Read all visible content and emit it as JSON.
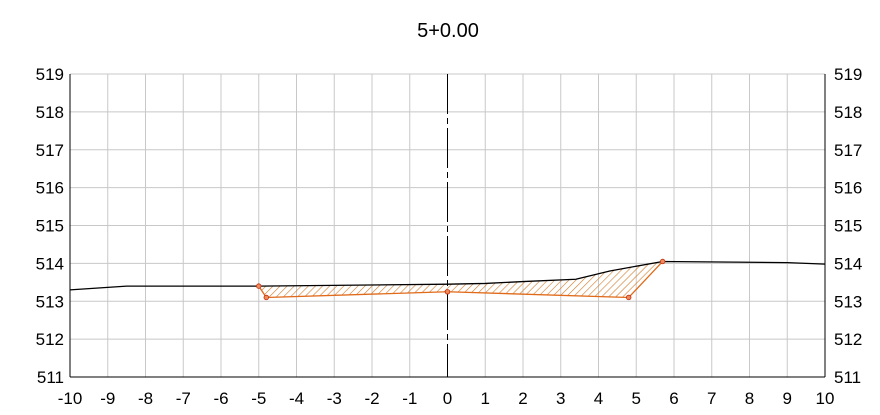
{
  "chart_data": {
    "type": "line",
    "title": "5+0.00",
    "xlabel": "",
    "ylabel": "",
    "xlim": [
      -10,
      10
    ],
    "ylim": [
      511,
      519
    ],
    "x_ticks": [
      "-10",
      "-9",
      "-8",
      "-7",
      "-6",
      "-5",
      "-4",
      "-3",
      "-2",
      "-1",
      "0",
      "1",
      "2",
      "3",
      "4",
      "5",
      "6",
      "7",
      "8",
      "9",
      "10"
    ],
    "x_tick_values": [
      -10,
      -9,
      -8,
      -7,
      -6,
      -5,
      -4,
      -3,
      -2,
      -1,
      0,
      1,
      2,
      3,
      4,
      5,
      6,
      7,
      8,
      9,
      10
    ],
    "y_ticks_left": [
      "511",
      "512",
      "513",
      "514",
      "515",
      "516",
      "517",
      "518",
      "519"
    ],
    "y_ticks_right": [
      "511",
      "512",
      "513",
      "514",
      "515",
      "516",
      "517",
      "518",
      "519"
    ],
    "y_tick_values": [
      511,
      512,
      513,
      514,
      515,
      516,
      517,
      518,
      519
    ],
    "grid": true,
    "centerline_x": 0,
    "series": [
      {
        "role": "existing-ground",
        "color": "#000000",
        "points": [
          [
            -10,
            513.3
          ],
          [
            -8.5,
            513.4
          ],
          [
            -5,
            513.4
          ],
          [
            0,
            513.45
          ],
          [
            1,
            513.47
          ],
          [
            2,
            513.52
          ],
          [
            3.4,
            513.58
          ],
          [
            4.3,
            513.8
          ],
          [
            5.7,
            514.05
          ],
          [
            9,
            514.02
          ],
          [
            10,
            513.98
          ]
        ]
      },
      {
        "role": "design-surface",
        "color": "#e06a1a",
        "points": [
          [
            -5.0,
            513.4
          ],
          [
            -4.8,
            513.1
          ],
          [
            0,
            513.25
          ],
          [
            4.8,
            513.1
          ],
          [
            5.7,
            514.05
          ]
        ]
      }
    ],
    "fill_region": {
      "pattern": "hatch",
      "color": "#d07a2a",
      "polygon": [
        [
          -5.0,
          513.4
        ],
        [
          0,
          513.45
        ],
        [
          1,
          513.47
        ],
        [
          2,
          513.52
        ],
        [
          3.4,
          513.58
        ],
        [
          4.3,
          513.8
        ],
        [
          5.7,
          514.05
        ],
        [
          4.8,
          513.1
        ],
        [
          0,
          513.25
        ],
        [
          -4.8,
          513.1
        ]
      ]
    },
    "markers": [
      {
        "x": -5.0,
        "y": 513.4
      },
      {
        "x": -4.8,
        "y": 513.1
      },
      {
        "x": 0,
        "y": 513.25
      },
      {
        "x": 4.8,
        "y": 513.1
      },
      {
        "x": 5.7,
        "y": 514.05
      }
    ],
    "colors": {
      "grid": "#c8c8c8",
      "axis": "#000000",
      "marker_fill": "#f08a5a",
      "marker_stroke": "#c03010"
    }
  }
}
